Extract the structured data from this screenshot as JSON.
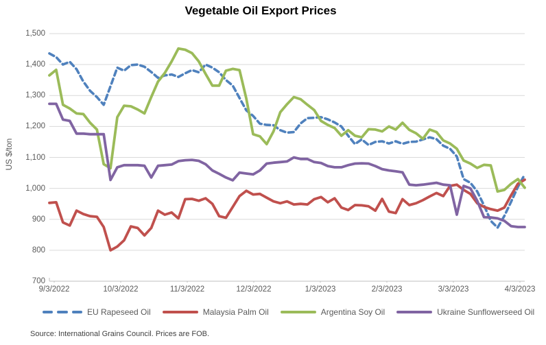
{
  "chart_data": {
    "type": "line",
    "title": "Vegetable Oil Export Prices",
    "ylabel": "US $/ton",
    "ylim": [
      700,
      1500
    ],
    "ytick_step": 100,
    "ytick_labels": [
      "1,500",
      "1,400",
      "1,300",
      "1,200",
      "1,100",
      "1,000",
      "900",
      "800",
      "700"
    ],
    "x_tick_labels": [
      "9/3/2022",
      "10/3/2022",
      "11/3/2022",
      "12/3/2022",
      "1/3/2023",
      "2/3/2023",
      "3/3/2023",
      "4/3/2023"
    ],
    "x_note": "values sampled uniformly in time from 9/3/2022 to 4/3/2023",
    "grid": "horizontal",
    "legend_position": "bottom",
    "axis_color": "#bfbfbf",
    "grid_color": "#d9d9d9",
    "source_note": "Source: International Grains Council. Prices are FOB.",
    "series": [
      {
        "name": "EU Rapeseed Oil",
        "color": "#4f81bd",
        "line_style": "dashed",
        "values": [
          1436,
          1424,
          1400,
          1409,
          1385,
          1345,
          1315,
          1295,
          1270,
          1330,
          1390,
          1380,
          1398,
          1400,
          1393,
          1376,
          1357,
          1365,
          1368,
          1360,
          1372,
          1382,
          1375,
          1400,
          1390,
          1375,
          1350,
          1332,
          1292,
          1252,
          1234,
          1209,
          1205,
          1204,
          1188,
          1180,
          1182,
          1210,
          1227,
          1228,
          1230,
          1223,
          1213,
          1200,
          1170,
          1143,
          1158,
          1140,
          1150,
          1152,
          1145,
          1152,
          1144,
          1150,
          1151,
          1158,
          1165,
          1159,
          1138,
          1128,
          1103,
          1030,
          1018,
          990,
          945,
          895,
          873,
          911,
          957,
          1005,
          1045
        ]
      },
      {
        "name": "Malaysia Palm Oil",
        "color": "#c0504d",
        "line_style": "solid",
        "values": [
          953,
          955,
          890,
          880,
          928,
          917,
          910,
          908,
          875,
          800,
          812,
          832,
          877,
          872,
          848,
          872,
          928,
          915,
          922,
          903,
          965,
          966,
          960,
          968,
          950,
          910,
          905,
          940,
          975,
          992,
          980,
          982,
          970,
          958,
          952,
          958,
          948,
          950,
          948,
          965,
          972,
          955,
          968,
          938,
          930,
          946,
          945,
          942,
          928,
          966,
          925,
          920,
          965,
          946,
          952,
          962,
          974,
          985,
          975,
          1008,
          1012,
          995,
          982,
          952,
          940,
          933,
          928,
          938,
          978,
          1015,
          1028
        ]
      },
      {
        "name": "Argentina Soy Oil",
        "color": "#9bbb59",
        "line_style": "solid",
        "values": [
          1365,
          1383,
          1270,
          1258,
          1242,
          1240,
          1212,
          1190,
          1078,
          1065,
          1230,
          1267,
          1265,
          1255,
          1242,
          1295,
          1345,
          1373,
          1410,
          1452,
          1448,
          1437,
          1410,
          1370,
          1332,
          1332,
          1380,
          1386,
          1382,
          1290,
          1175,
          1168,
          1143,
          1184,
          1246,
          1272,
          1295,
          1288,
          1270,
          1253,
          1218,
          1205,
          1195,
          1170,
          1188,
          1170,
          1165,
          1191,
          1190,
          1184,
          1200,
          1190,
          1212,
          1189,
          1178,
          1160,
          1190,
          1182,
          1155,
          1145,
          1128,
          1090,
          1080,
          1066,
          1076,
          1074,
          990,
          995,
          1015,
          1030,
          1002
        ]
      },
      {
        "name": "Ukraine Sunflowerseed Oil",
        "color": "#8064a2",
        "line_style": "solid",
        "values": [
          1273,
          1273,
          1222,
          1218,
          1177,
          1177,
          1175,
          1175,
          1175,
          1027,
          1068,
          1075,
          1075,
          1075,
          1073,
          1035,
          1073,
          1075,
          1077,
          1088,
          1091,
          1092,
          1089,
          1078,
          1058,
          1047,
          1035,
          1026,
          1051,
          1048,
          1045,
          1058,
          1080,
          1083,
          1085,
          1087,
          1100,
          1095,
          1095,
          1085,
          1082,
          1072,
          1068,
          1068,
          1075,
          1080,
          1081,
          1080,
          1072,
          1062,
          1058,
          1055,
          1052,
          1012,
          1010,
          1012,
          1015,
          1018,
          1012,
          1010,
          915,
          1008,
          1000,
          960,
          907,
          906,
          903,
          895,
          878,
          875,
          875
        ]
      }
    ]
  }
}
